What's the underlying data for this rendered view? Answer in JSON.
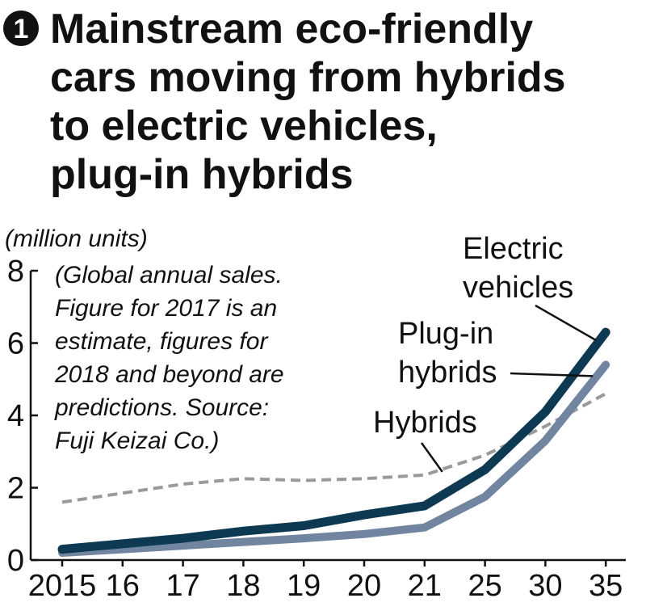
{
  "badge": "1",
  "title_lines": [
    "Mainstream eco-friendly",
    "cars moving from hybrids",
    "to electric vehicles,",
    "plug-in hybrids"
  ],
  "unit": "(million units)",
  "note_lines": [
    "(Global annual sales.",
    "Figure for 2017 is an",
    "estimate, figures for",
    "2018 and beyond are",
    "predictions. Source:",
    "Fuji Keizai Co.)"
  ],
  "colors": {
    "electric": "#0d3a52",
    "plugin": "#7185a0",
    "hybrid": "#9a9a9a"
  },
  "chart_data": {
    "type": "line",
    "categories": [
      "2015",
      "16",
      "17",
      "18",
      "19",
      "20",
      "21",
      "25",
      "30",
      "35"
    ],
    "ylim": [
      0,
      8
    ],
    "yticks": [
      "0",
      "2",
      "4",
      "6",
      "8"
    ],
    "grid": false,
    "series": [
      {
        "name": "Electric vehicles",
        "label_lines": [
          "Electric",
          "vehicles"
        ],
        "values": [
          0.3,
          0.45,
          0.6,
          0.8,
          0.95,
          1.25,
          1.5,
          2.5,
          4.1,
          6.3
        ],
        "style": "solid"
      },
      {
        "name": "Plug-in hybrids",
        "label_lines": [
          "Plug-in",
          "hybrids"
        ],
        "values": [
          0.2,
          0.3,
          0.4,
          0.5,
          0.6,
          0.72,
          0.9,
          1.75,
          3.3,
          5.4
        ],
        "style": "solid"
      },
      {
        "name": "Hybrids",
        "label_lines": [
          "Hybrids"
        ],
        "values": [
          1.6,
          1.85,
          2.1,
          2.25,
          2.2,
          2.25,
          2.35,
          2.9,
          3.7,
          4.6
        ],
        "style": "dashed"
      }
    ]
  }
}
